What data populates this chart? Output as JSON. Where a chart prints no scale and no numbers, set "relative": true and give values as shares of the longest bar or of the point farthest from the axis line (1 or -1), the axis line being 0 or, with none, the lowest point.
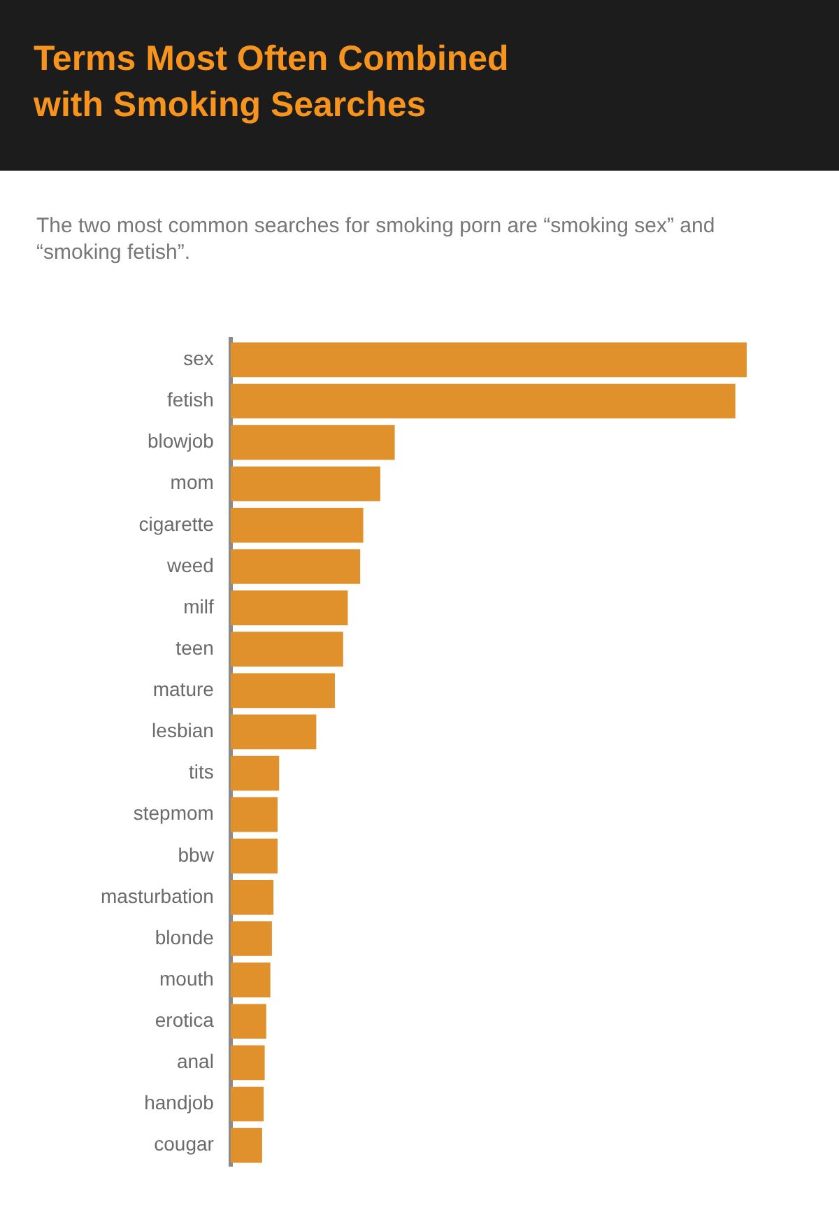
{
  "chart_data": {
    "type": "bar",
    "orientation": "horizontal",
    "relative": true,
    "grid": false,
    "legend": false,
    "title": "Terms Most Often Combined with Smoking Searches",
    "subtitle": "The two most common searches for smoking porn are “smoking sex” and “smoking fetish”.",
    "color": "#e0912b",
    "categories": [
      "sex",
      "fetish",
      "blowjob",
      "mom",
      "cigarette",
      "weed",
      "milf",
      "teen",
      "mature",
      "lesbian",
      "tits",
      "stepmom",
      "bbw",
      "masturbation",
      "blonde",
      "mouth",
      "erotica",
      "anal",
      "handjob",
      "cougar"
    ],
    "values": [
      1,
      0.978,
      0.318,
      0.29,
      0.257,
      0.251,
      0.227,
      0.218,
      0.202,
      0.166,
      0.094,
      0.091,
      0.091,
      0.083,
      0.08,
      0.077,
      0.069,
      0.066,
      0.064,
      0.061
    ]
  }
}
